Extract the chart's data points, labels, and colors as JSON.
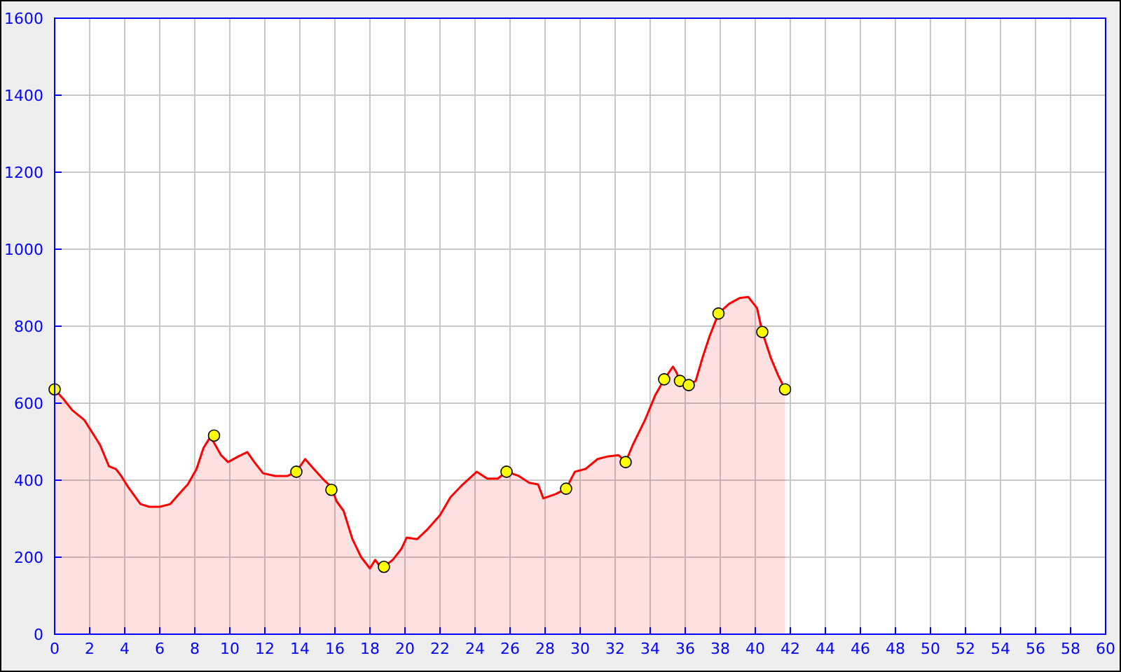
{
  "chart_data": {
    "type": "area",
    "xlim": [
      0,
      60
    ],
    "ylim": [
      0,
      1600
    ],
    "xticks": [
      0,
      2,
      4,
      6,
      8,
      10,
      12,
      14,
      16,
      18,
      20,
      22,
      24,
      26,
      28,
      30,
      32,
      34,
      36,
      38,
      40,
      42,
      44,
      46,
      48,
      50,
      52,
      54,
      56,
      58,
      60
    ],
    "yticks": [
      0,
      200,
      400,
      600,
      800,
      1000,
      1200,
      1400,
      1600
    ],
    "grid": true,
    "series": [
      {
        "color": "#ff0000",
        "line_style": "solid",
        "x": [
          0,
          0.5,
          1,
          1.7,
          2.2,
          2.6,
          3.1,
          3.5,
          3.8,
          4.2,
          4.9,
          5.4,
          6,
          6.6,
          7.1,
          7.6,
          8.1,
          8.5,
          8.9,
          9.5,
          9.9,
          10.5,
          11,
          11.4,
          11.9,
          12.6,
          13.3,
          13.8,
          14.3,
          14.8,
          15.3,
          15.8,
          16.1,
          16.5,
          17,
          17.5,
          18,
          18.3,
          18.6,
          18.8,
          19.3,
          19.8,
          20.1,
          20.7,
          21.3,
          22,
          22.6,
          23.3,
          24.1,
          24.7,
          25.3,
          25.8,
          26.5,
          27.1,
          27.6,
          27.9,
          28.6,
          29.2,
          29.7,
          30.3,
          31,
          31.6,
          32.2,
          32.6,
          33,
          33.7,
          34.3,
          34.8,
          35.3,
          35.5,
          35.7,
          36.1,
          36.2,
          36.6,
          37,
          37.4,
          37.9,
          38.5,
          39.1,
          39.6,
          40.1,
          40.4,
          40.9,
          41.3,
          41.7
        ],
        "values": [
          636,
          611,
          582,
          556,
          520,
          491,
          436,
          429,
          411,
          382,
          338,
          331,
          331,
          338,
          364,
          389,
          429,
          484,
          513,
          465,
          447,
          462,
          473,
          447,
          418,
          411,
          411,
          422,
          455,
          429,
          404,
          382,
          345,
          320,
          247,
          200,
          171,
          193,
          175,
          175,
          193,
          222,
          251,
          247,
          273,
          309,
          356,
          389,
          422,
          404,
          404,
          422,
          411,
          393,
          389,
          353,
          364,
          378,
          422,
          429,
          455,
          462,
          465,
          447,
          491,
          556,
          622,
          662,
          695,
          680,
          658,
          655,
          647,
          658,
          720,
          775,
          833,
          858,
          873,
          876,
          847,
          785,
          716,
          673,
          636
        ]
      },
      {
        "type": "scatter",
        "color": "#ffff00",
        "marker": "circle",
        "x": [
          0,
          9.1,
          13.8,
          15.8,
          18.8,
          25.8,
          29.2,
          32.6,
          34.8,
          35.7,
          36.2,
          37.9,
          40.4,
          41.7
        ],
        "values": [
          636,
          516,
          422,
          375,
          175,
          422,
          378,
          447,
          662,
          658,
          647,
          833,
          785,
          636
        ]
      }
    ]
  }
}
